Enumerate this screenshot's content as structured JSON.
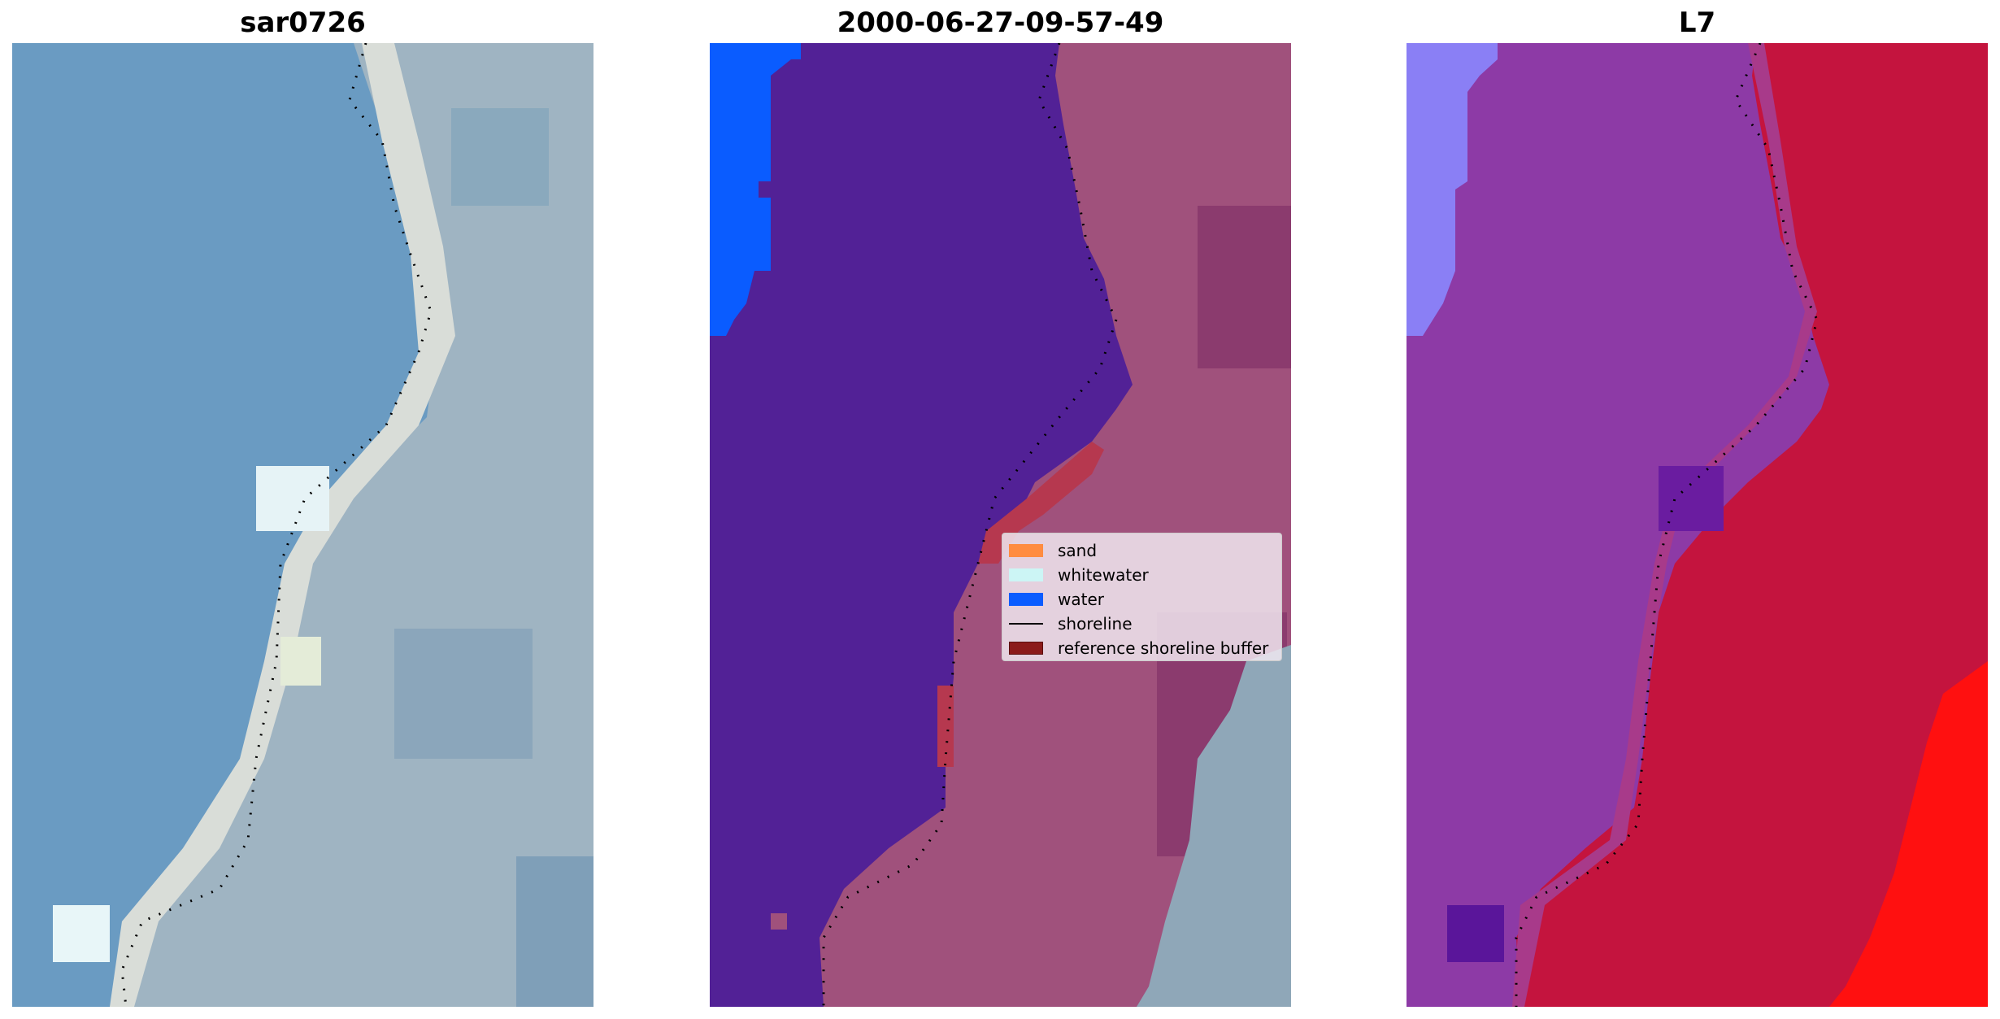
{
  "panels": [
    {
      "title": "sar0726"
    },
    {
      "title": "2000-06-27-09-57-49"
    },
    {
      "title": "L7"
    }
  ],
  "legend": {
    "items": [
      {
        "label": "sand",
        "color": "#ff8c40"
      },
      {
        "label": "whitewater",
        "color": "#ccf5f5"
      },
      {
        "label": "water",
        "color": "#0a5cff"
      },
      {
        "label": "shoreline",
        "color": "#000000"
      },
      {
        "label": "reference shoreline buffer",
        "color": "#8b1a1a"
      }
    ]
  }
}
